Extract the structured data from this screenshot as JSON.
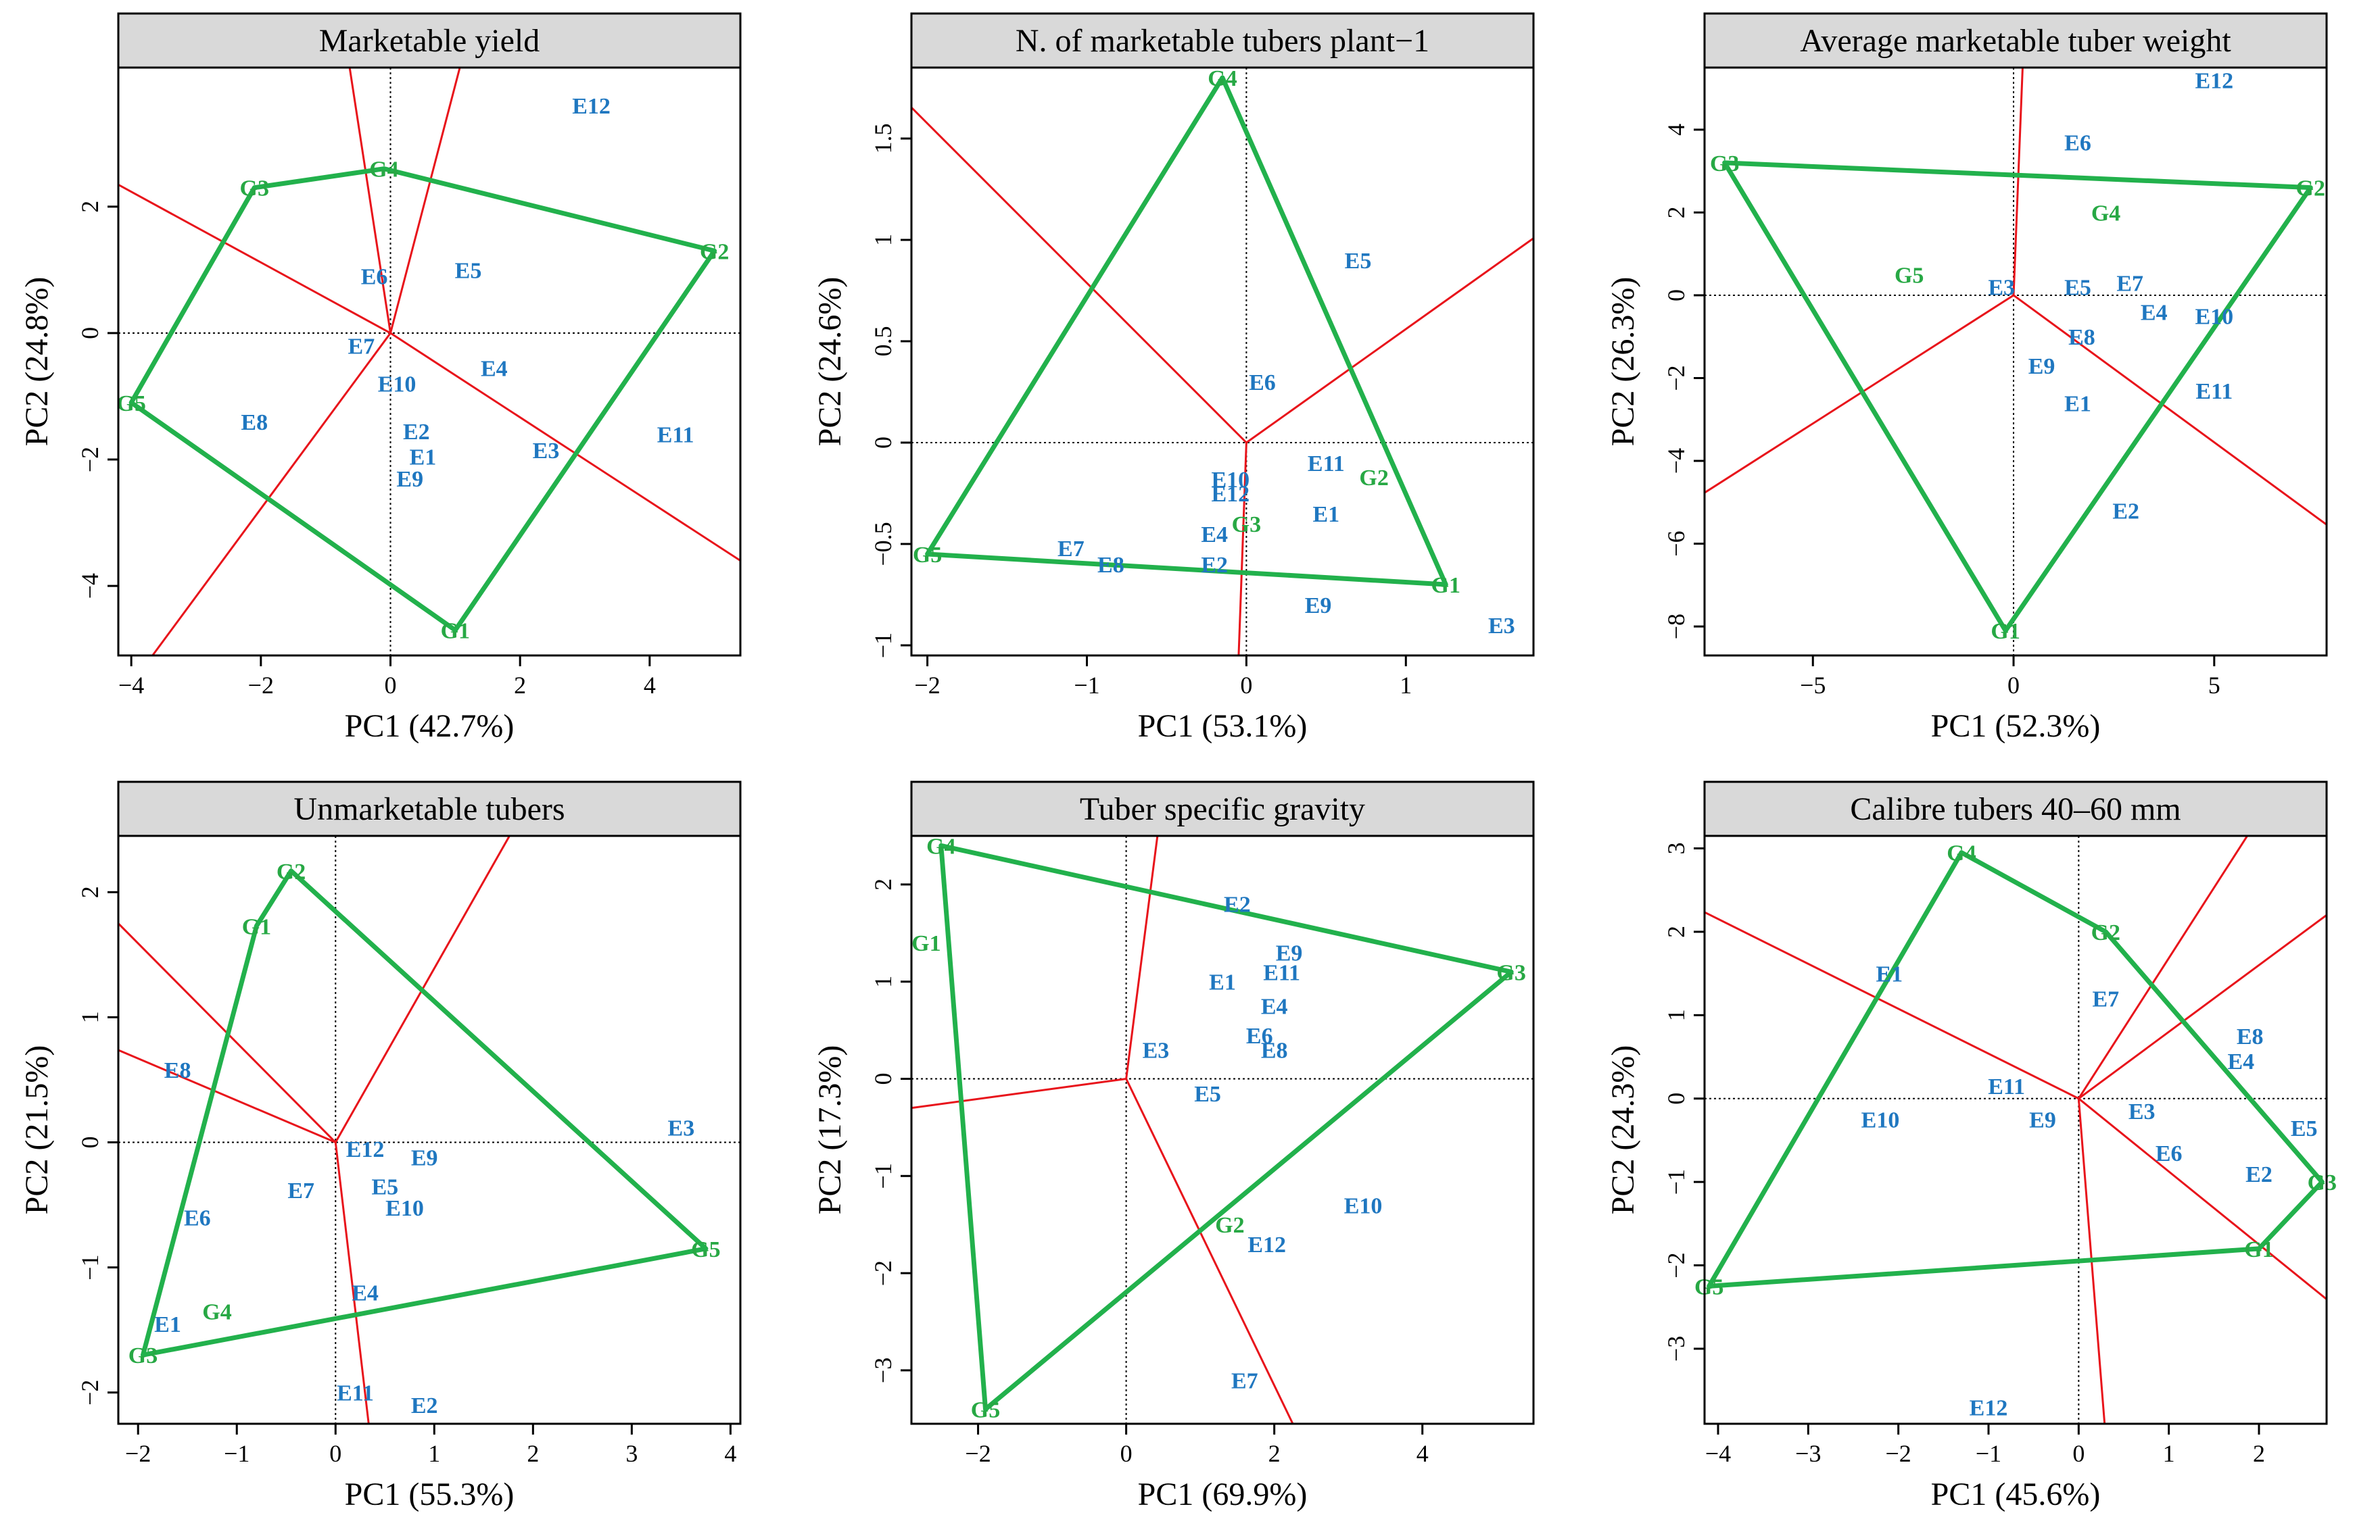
{
  "figure": {
    "colors": {
      "environment": "#1F77C0",
      "genotype": "#27A844",
      "hull": "#22B14C",
      "sector": "#E8141B",
      "title_bg": "#D9D9D9"
    }
  },
  "chart_data": [
    {
      "type": "scatter",
      "subtype": "GGE biplot which-won-where",
      "title": "Marketable yield",
      "xlabel": "PC1 (42.7%)",
      "ylabel": "PC2 (24.8%)",
      "xlim": [
        -4.2,
        5.4
      ],
      "ylim": [
        -5.1,
        4.2
      ],
      "xticks": [
        -4,
        -2,
        0,
        2,
        4
      ],
      "yticks": [
        -4,
        -2,
        0,
        2
      ],
      "genotypes": [
        {
          "label": "G1",
          "x": 1.0,
          "y": -4.7
        },
        {
          "label": "G2",
          "x": 5.0,
          "y": 1.3
        },
        {
          "label": "G3",
          "x": -2.1,
          "y": 2.3
        },
        {
          "label": "G4",
          "x": -0.1,
          "y": 2.6
        },
        {
          "label": "G5",
          "x": -4.0,
          "y": -1.1
        }
      ],
      "hull": [
        "G3",
        "G4",
        "G2",
        "G1",
        "G5"
      ],
      "environments": [
        {
          "label": "E1",
          "x": 0.5,
          "y": -1.95
        },
        {
          "label": "E2",
          "x": 0.4,
          "y": -1.55
        },
        {
          "label": "E3",
          "x": 2.4,
          "y": -1.85
        },
        {
          "label": "E4",
          "x": 1.6,
          "y": -0.55
        },
        {
          "label": "E5",
          "x": 1.2,
          "y": 1.0
        },
        {
          "label": "E6",
          "x": -0.25,
          "y": 0.9
        },
        {
          "label": "E7",
          "x": -0.45,
          "y": -0.2
        },
        {
          "label": "E8",
          "x": -2.1,
          "y": -1.4
        },
        {
          "label": "E9",
          "x": 0.3,
          "y": -2.3
        },
        {
          "label": "E10",
          "x": 0.1,
          "y": -0.8
        },
        {
          "label": "E11",
          "x": 4.4,
          "y": -1.6
        },
        {
          "label": "E12",
          "x": 3.1,
          "y": 3.6
        }
      ]
    },
    {
      "type": "scatter",
      "subtype": "GGE biplot which-won-where",
      "title": "N. of marketable tubers plant−1",
      "xlabel": "PC1 (53.1%)",
      "ylabel": "PC2 (24.6%)",
      "xlim": [
        -2.1,
        1.8
      ],
      "ylim": [
        -1.05,
        1.85
      ],
      "xticks": [
        -2,
        -1,
        0,
        1
      ],
      "yticks": [
        -1.0,
        -0.5,
        0.0,
        0.5,
        1.0,
        1.5
      ],
      "genotypes": [
        {
          "label": "G1",
          "x": 1.25,
          "y": -0.7
        },
        {
          "label": "G2",
          "x": 0.8,
          "y": -0.17
        },
        {
          "label": "G3",
          "x": 0.0,
          "y": -0.4
        },
        {
          "label": "G4",
          "x": -0.15,
          "y": 1.8
        },
        {
          "label": "G5",
          "x": -2.0,
          "y": -0.55
        }
      ],
      "hull": [
        "G4",
        "G1",
        "G5"
      ],
      "environments": [
        {
          "label": "E1",
          "x": 0.5,
          "y": -0.35
        },
        {
          "label": "E2",
          "x": -0.2,
          "y": -0.6
        },
        {
          "label": "E3",
          "x": 1.6,
          "y": -0.9
        },
        {
          "label": "E4",
          "x": -0.2,
          "y": -0.45
        },
        {
          "label": "E5",
          "x": 0.7,
          "y": 0.9
        },
        {
          "label": "E6",
          "x": 0.1,
          "y": 0.3
        },
        {
          "label": "E7",
          "x": -1.1,
          "y": -0.52
        },
        {
          "label": "E8",
          "x": -0.85,
          "y": -0.6
        },
        {
          "label": "E9",
          "x": 0.45,
          "y": -0.8
        },
        {
          "label": "E10",
          "x": -0.1,
          "y": -0.18
        },
        {
          "label": "E11",
          "x": 0.5,
          "y": -0.1
        },
        {
          "label": "E12",
          "x": -0.1,
          "y": -0.25
        }
      ]
    },
    {
      "type": "scatter",
      "subtype": "GGE biplot which-won-where",
      "title": "Average marketable tuber weight",
      "xlabel": "PC1 (52.3%)",
      "ylabel": "PC2 (26.3%)",
      "xlim": [
        -7.7,
        7.8
      ],
      "ylim": [
        -8.7,
        5.5
      ],
      "xticks": [
        -5,
        0,
        5
      ],
      "yticks": [
        -8,
        -6,
        -4,
        -2,
        0,
        2,
        4
      ],
      "genotypes": [
        {
          "label": "G1",
          "x": -0.2,
          "y": -8.1
        },
        {
          "label": "G2",
          "x": 7.4,
          "y": 2.6
        },
        {
          "label": "G3",
          "x": -7.2,
          "y": 3.2
        },
        {
          "label": "G4",
          "x": 2.3,
          "y": 2.0
        },
        {
          "label": "G5",
          "x": -2.6,
          "y": 0.5
        }
      ],
      "hull": [
        "G3",
        "G2",
        "G1"
      ],
      "environments": [
        {
          "label": "E1",
          "x": 1.6,
          "y": -2.6
        },
        {
          "label": "E2",
          "x": 2.8,
          "y": -5.2
        },
        {
          "label": "E3",
          "x": -0.3,
          "y": 0.2
        },
        {
          "label": "E4",
          "x": 3.5,
          "y": -0.4
        },
        {
          "label": "E5",
          "x": 1.6,
          "y": 0.2
        },
        {
          "label": "E6",
          "x": 1.6,
          "y": 3.7
        },
        {
          "label": "E7",
          "x": 2.9,
          "y": 0.3
        },
        {
          "label": "E8",
          "x": 1.7,
          "y": -1.0
        },
        {
          "label": "E9",
          "x": 0.7,
          "y": -1.7
        },
        {
          "label": "E10",
          "x": 5.0,
          "y": -0.5
        },
        {
          "label": "E11",
          "x": 5.0,
          "y": -2.3
        },
        {
          "label": "E12",
          "x": 5.0,
          "y": 5.2
        }
      ]
    },
    {
      "type": "scatter",
      "subtype": "GGE biplot which-won-where",
      "title": "Unmarketable tubers",
      "xlabel": "PC1 (55.3%)",
      "ylabel": "PC2 (21.5%)",
      "xlim": [
        -2.2,
        4.1
      ],
      "ylim": [
        -2.25,
        2.45
      ],
      "xticks": [
        -2,
        -1,
        0,
        1,
        2,
        3,
        4
      ],
      "yticks": [
        -2,
        -1,
        0,
        1,
        2
      ],
      "genotypes": [
        {
          "label": "G1",
          "x": -0.8,
          "y": 1.73
        },
        {
          "label": "G2",
          "x": -0.45,
          "y": 2.17
        },
        {
          "label": "G3",
          "x": -1.95,
          "y": -1.7
        },
        {
          "label": "G4",
          "x": -1.2,
          "y": -1.35
        },
        {
          "label": "G5",
          "x": 3.75,
          "y": -0.85
        }
      ],
      "hull": [
        "G2",
        "G5",
        "G3",
        "G1"
      ],
      "environments": [
        {
          "label": "E1",
          "x": -1.7,
          "y": -1.45
        },
        {
          "label": "E2",
          "x": 0.9,
          "y": -2.1
        },
        {
          "label": "E3",
          "x": 3.5,
          "y": 0.12
        },
        {
          "label": "E4",
          "x": 0.3,
          "y": -1.2
        },
        {
          "label": "E5",
          "x": 0.5,
          "y": -0.35
        },
        {
          "label": "E6",
          "x": -1.4,
          "y": -0.6
        },
        {
          "label": "E7",
          "x": -0.35,
          "y": -0.38
        },
        {
          "label": "E8",
          "x": -1.6,
          "y": 0.58
        },
        {
          "label": "E9",
          "x": 0.9,
          "y": -0.12
        },
        {
          "label": "E10",
          "x": 0.7,
          "y": -0.52
        },
        {
          "label": "E11",
          "x": 0.2,
          "y": -2.0
        },
        {
          "label": "E12",
          "x": 0.3,
          "y": -0.05
        }
      ]
    },
    {
      "type": "scatter",
      "subtype": "GGE biplot which-won-where",
      "title": "Tuber specific gravity",
      "xlabel": "PC1 (69.9%)",
      "ylabel": "PC2 (17.3%)",
      "xlim": [
        -2.9,
        5.5
      ],
      "ylim": [
        -3.55,
        2.5
      ],
      "xticks": [
        -2,
        0,
        2,
        4
      ],
      "yticks": [
        -3,
        -2,
        -1,
        0,
        1,
        2
      ],
      "genotypes": [
        {
          "label": "G1",
          "x": -2.7,
          "y": 1.4
        },
        {
          "label": "G2",
          "x": 1.4,
          "y": -1.5
        },
        {
          "label": "G3",
          "x": 5.2,
          "y": 1.1
        },
        {
          "label": "G4",
          "x": -2.5,
          "y": 2.4
        },
        {
          "label": "G5",
          "x": -1.9,
          "y": -3.4
        }
      ],
      "hull": [
        "G4",
        "G3",
        "G5"
      ],
      "environments": [
        {
          "label": "E1",
          "x": 1.3,
          "y": 1.0
        },
        {
          "label": "E2",
          "x": 1.5,
          "y": 1.8
        },
        {
          "label": "E3",
          "x": 0.4,
          "y": 0.3
        },
        {
          "label": "E4",
          "x": 2.0,
          "y": 0.75
        },
        {
          "label": "E5",
          "x": 1.1,
          "y": -0.15
        },
        {
          "label": "E6",
          "x": 1.8,
          "y": 0.45
        },
        {
          "label": "E7",
          "x": 1.6,
          "y": -3.1
        },
        {
          "label": "E8",
          "x": 2.0,
          "y": 0.3
        },
        {
          "label": "E9",
          "x": 2.2,
          "y": 1.3
        },
        {
          "label": "E10",
          "x": 3.2,
          "y": -1.3
        },
        {
          "label": "E11",
          "x": 2.1,
          "y": 1.1
        },
        {
          "label": "E12",
          "x": 1.9,
          "y": -1.7
        }
      ]
    },
    {
      "type": "scatter",
      "subtype": "GGE biplot which-won-where",
      "title": "Calibre tubers 40–60 mm",
      "xlabel": "PC1 (45.6%)",
      "ylabel": "PC2 (24.3%)",
      "xlim": [
        -4.15,
        2.75
      ],
      "ylim": [
        -3.9,
        3.15
      ],
      "xticks": [
        -4,
        -3,
        -2,
        -1,
        0,
        1,
        2
      ],
      "yticks": [
        -3,
        -2,
        -1,
        0,
        1,
        2,
        3
      ],
      "genotypes": [
        {
          "label": "G1",
          "x": 2.0,
          "y": -1.8
        },
        {
          "label": "G2",
          "x": 0.3,
          "y": 2.0
        },
        {
          "label": "G3",
          "x": 2.7,
          "y": -1.0
        },
        {
          "label": "G4",
          "x": -1.3,
          "y": 2.95
        },
        {
          "label": "G5",
          "x": -4.1,
          "y": -2.25
        }
      ],
      "hull": [
        "G4",
        "G2",
        "G3",
        "G1",
        "G5"
      ],
      "environments": [
        {
          "label": "E1",
          "x": -2.1,
          "y": 1.5
        },
        {
          "label": "E2",
          "x": 2.0,
          "y": -0.9
        },
        {
          "label": "E3",
          "x": 0.7,
          "y": -0.15
        },
        {
          "label": "E4",
          "x": 1.8,
          "y": 0.45
        },
        {
          "label": "E5",
          "x": 2.5,
          "y": -0.35
        },
        {
          "label": "E6",
          "x": 1.0,
          "y": -0.65
        },
        {
          "label": "E7",
          "x": 0.3,
          "y": 1.2
        },
        {
          "label": "E8",
          "x": 1.9,
          "y": 0.75
        },
        {
          "label": "E9",
          "x": -0.4,
          "y": -0.25
        },
        {
          "label": "E10",
          "x": -2.2,
          "y": -0.25
        },
        {
          "label": "E11",
          "x": -0.8,
          "y": 0.15
        },
        {
          "label": "E12",
          "x": -1.0,
          "y": -3.7
        }
      ]
    }
  ]
}
